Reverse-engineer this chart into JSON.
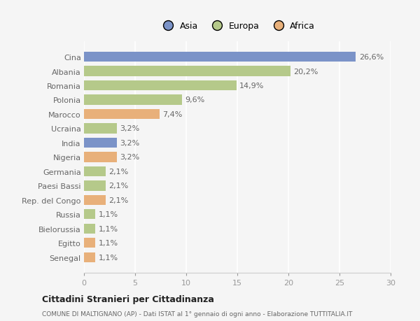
{
  "categories": [
    "Cina",
    "Albania",
    "Romania",
    "Polonia",
    "Marocco",
    "Ucraina",
    "India",
    "Nigeria",
    "Germania",
    "Paesi Bassi",
    "Rep. del Congo",
    "Russia",
    "Bielorussia",
    "Egitto",
    "Senegal"
  ],
  "values": [
    26.6,
    20.2,
    14.9,
    9.6,
    7.4,
    3.2,
    3.2,
    3.2,
    2.1,
    2.1,
    2.1,
    1.1,
    1.1,
    1.1,
    1.1
  ],
  "labels": [
    "26,6%",
    "20,2%",
    "14,9%",
    "9,6%",
    "7,4%",
    "3,2%",
    "3,2%",
    "3,2%",
    "2,1%",
    "2,1%",
    "2,1%",
    "1,1%",
    "1,1%",
    "1,1%",
    "1,1%"
  ],
  "continents": [
    "Asia",
    "Europa",
    "Europa",
    "Europa",
    "Africa",
    "Europa",
    "Asia",
    "Africa",
    "Europa",
    "Europa",
    "Africa",
    "Europa",
    "Europa",
    "Africa",
    "Africa"
  ],
  "colors": {
    "Asia": "#7b93c8",
    "Europa": "#b5c98a",
    "Africa": "#e8b07a"
  },
  "legend_labels": [
    "Asia",
    "Europa",
    "Africa"
  ],
  "legend_colors": [
    "#7b93c8",
    "#b5c98a",
    "#e8b07a"
  ],
  "xlim": [
    0,
    30
  ],
  "xticks": [
    0,
    5,
    10,
    15,
    20,
    25,
    30
  ],
  "title": "Cittadini Stranieri per Cittadinanza",
  "subtitle": "COMUNE DI MALTIGNANO (AP) - Dati ISTAT al 1° gennaio di ogni anno - Elaborazione TUTTITALIA.IT",
  "background_color": "#f5f5f5",
  "bar_height": 0.7,
  "label_fontsize": 8.0,
  "tick_fontsize": 8.0,
  "ylabel_color": "#666666",
  "xlabel_color": "#999999"
}
